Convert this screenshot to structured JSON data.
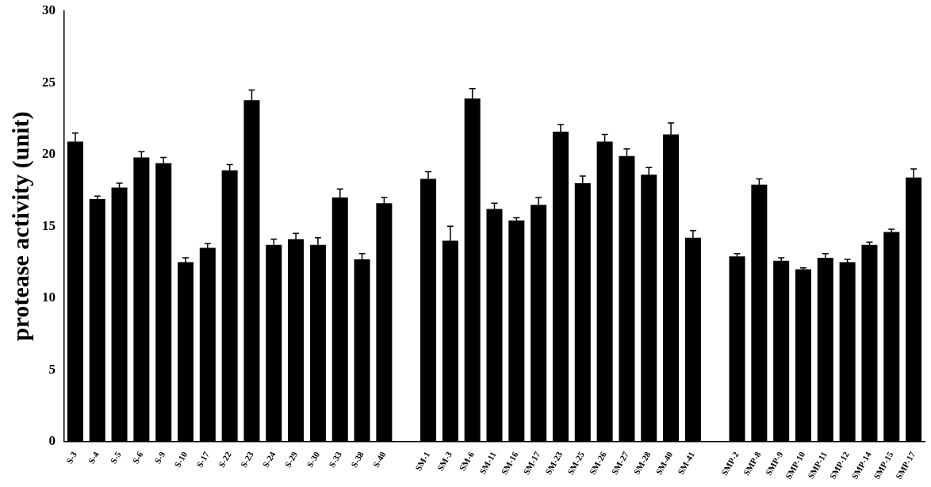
{
  "chart_data": {
    "type": "bar",
    "y_label": "protease activity (unit)",
    "categories": [
      "S-3",
      "S-4",
      "S-5",
      "S-6",
      "S-9",
      "S-10",
      "S-17",
      "S-22",
      "S-23",
      "S-24",
      "S-29",
      "S-30",
      "S-33",
      "S-38",
      "S-40",
      null,
      "SM-1",
      "SM-3",
      "SM-6",
      "SM-11",
      "SM-16",
      "SM-17",
      "SM-23",
      "SM-25",
      "SM-26",
      "SM-27",
      "SM-28",
      "SM-40",
      "SM-41",
      null,
      "SMP-2",
      "SMP-8",
      "SMP-9",
      "SMP-10",
      "SMP-11",
      "SMP-12",
      "SMP-14",
      "SMP-15",
      "SMP-17"
    ],
    "values": [
      20.9,
      16.9,
      17.7,
      19.8,
      19.4,
      12.5,
      13.5,
      18.9,
      23.8,
      13.7,
      14.1,
      13.7,
      17.0,
      12.7,
      16.6,
      null,
      18.3,
      14.0,
      23.9,
      16.2,
      15.4,
      16.5,
      21.6,
      18.0,
      20.9,
      19.9,
      18.6,
      21.4,
      14.2,
      null,
      12.9,
      17.9,
      12.6,
      12.0,
      12.8,
      12.5,
      13.7,
      14.6,
      18.4
    ],
    "errors": [
      0.6,
      0.2,
      0.3,
      0.4,
      0.4,
      0.3,
      0.3,
      0.4,
      0.7,
      0.4,
      0.4,
      0.5,
      0.6,
      0.4,
      0.4,
      null,
      0.5,
      1.0,
      0.7,
      0.4,
      0.2,
      0.5,
      0.5,
      0.5,
      0.5,
      0.5,
      0.5,
      0.8,
      0.5,
      null,
      0.2,
      0.4,
      0.2,
      0.1,
      0.3,
      0.2,
      0.2,
      0.2,
      0.6
    ],
    "color": "#000000",
    "ylim": [
      0,
      30
    ],
    "yticks": [
      0,
      5,
      10,
      15,
      20,
      25,
      30
    ],
    "grid": false
  }
}
